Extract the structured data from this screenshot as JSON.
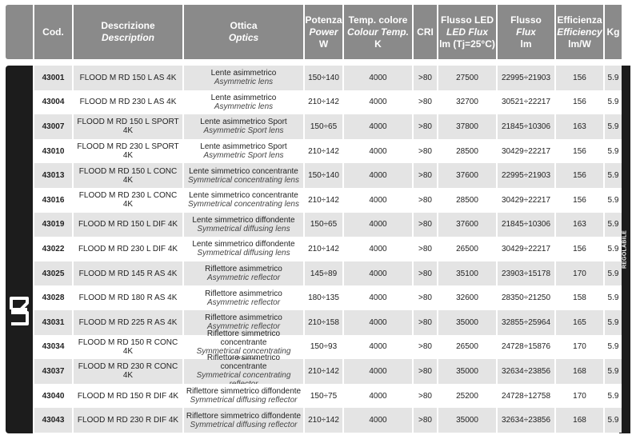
{
  "header": {
    "code": "Cod.",
    "description": {
      "it": "Descrizione",
      "en": "Description"
    },
    "optics": {
      "it": "Ottica",
      "en": "Optics"
    },
    "power": {
      "it": "Potenza",
      "en": "Power",
      "unit": "W"
    },
    "colour_temp": {
      "it": "Temp. colore",
      "en": "Colour Temp.",
      "unit": "K"
    },
    "cri": "CRI",
    "led_flux": {
      "it": "Flusso LED",
      "en": "LED Flux",
      "unit": "lm (Tj=25°C)"
    },
    "flux": {
      "it": "Flusso",
      "en": "Flux",
      "unit": "lm"
    },
    "efficiency": {
      "it": "Efficienza",
      "en": "Efficiency",
      "unit": "lm/W"
    },
    "kg": "Kg"
  },
  "side_label": "RD",
  "right_label": "REGOLABILE",
  "rows": [
    {
      "code": "43001",
      "desc": "FLOOD M RD 150 L AS 4K",
      "optic_it": "Lente asimmetrico",
      "optic_en": "Asymmetric lens",
      "power": "150÷140",
      "temp": "4000",
      "cri": ">80",
      "led_flux": "27500",
      "flux": "22995÷21903",
      "eff": "156",
      "kg": "5.9"
    },
    {
      "code": "43004",
      "desc": "FLOOD M RD 230 L AS 4K",
      "optic_it": "Lente asimmetrico",
      "optic_en": "Asymmetric lens",
      "power": "210÷142",
      "temp": "4000",
      "cri": ">80",
      "led_flux": "32700",
      "flux": "30521÷22217",
      "eff": "156",
      "kg": "5.9"
    },
    {
      "code": "43007",
      "desc": "FLOOD M RD 150 L SPORT 4K",
      "optic_it": "Lente asimmetrico Sport",
      "optic_en": "Asymmetric Sport lens",
      "power": "150÷65",
      "temp": "4000",
      "cri": ">80",
      "led_flux": "37800",
      "flux": "21845÷10306",
      "eff": "163",
      "kg": "5.9"
    },
    {
      "code": "43010",
      "desc": "FLOOD M RD 230 L SPORT 4K",
      "optic_it": "Lente asimmetrico Sport",
      "optic_en": "Asymmetric Sport lens",
      "power": "210÷142",
      "temp": "4000",
      "cri": ">80",
      "led_flux": "28500",
      "flux": "30429÷22217",
      "eff": "156",
      "kg": "5.9"
    },
    {
      "code": "43013",
      "desc": "FLOOD M RD 150 L CONC 4K",
      "optic_it": "Lente simmetrico concentrante",
      "optic_en": "Symmetrical concentrating lens",
      "power": "150÷140",
      "temp": "4000",
      "cri": ">80",
      "led_flux": "37600",
      "flux": "22995÷21903",
      "eff": "156",
      "kg": "5.9"
    },
    {
      "code": "43016",
      "desc": "FLOOD M RD 230 L CONC 4K",
      "optic_it": "Lente simmetrico concentrante",
      "optic_en": "Symmetrical concentrating lens",
      "power": "210÷142",
      "temp": "4000",
      "cri": ">80",
      "led_flux": "28500",
      "flux": "30429÷22217",
      "eff": "156",
      "kg": "5.9"
    },
    {
      "code": "43019",
      "desc": "FLOOD M RD 150 L DIF 4K",
      "optic_it": "Lente simmetrico diffondente",
      "optic_en": "Symmetrical diffusing lens",
      "power": "150÷65",
      "temp": "4000",
      "cri": ">80",
      "led_flux": "37600",
      "flux": "21845÷10306",
      "eff": "163",
      "kg": "5.9"
    },
    {
      "code": "43022",
      "desc": "FLOOD M RD 230 L DIF 4K",
      "optic_it": "Lente simmetrico diffondente",
      "optic_en": "Symmetrical diffusing lens",
      "power": "210÷142",
      "temp": "4000",
      "cri": ">80",
      "led_flux": "26500",
      "flux": "30429÷22217",
      "eff": "156",
      "kg": "5.9"
    },
    {
      "code": "43025",
      "desc": "FLOOD M RD 145 R AS 4K",
      "optic_it": "Riflettore asimmetrico",
      "optic_en": "Asymmetric reflector",
      "power": "145÷89",
      "temp": "4000",
      "cri": ">80",
      "led_flux": "35100",
      "flux": "23903÷15178",
      "eff": "170",
      "kg": "5.9"
    },
    {
      "code": "43028",
      "desc": "FLOOD M RD 180 R AS 4K",
      "optic_it": "Riflettore asimmetrico",
      "optic_en": "Asymmetric reflector",
      "power": "180÷135",
      "temp": "4000",
      "cri": ">80",
      "led_flux": "32600",
      "flux": "28350÷21250",
      "eff": "158",
      "kg": "5.9"
    },
    {
      "code": "43031",
      "desc": "FLOOD M RD 225 R AS 4K",
      "optic_it": "Riflettore asimmetrico",
      "optic_en": "Asymmetric reflector",
      "power": "210÷158",
      "temp": "4000",
      "cri": ">80",
      "led_flux": "35000",
      "flux": "32855÷25964",
      "eff": "165",
      "kg": "5.9"
    },
    {
      "code": "43034",
      "desc": "FLOOD M RD 150 R CONC 4K",
      "optic_it": "Riflettore simmetrico concentrante",
      "optic_en": "Symmetrical concentrating reflector",
      "power": "150÷93",
      "temp": "4000",
      "cri": ">80",
      "led_flux": "26500",
      "flux": "24728÷15876",
      "eff": "170",
      "kg": "5.9"
    },
    {
      "code": "43037",
      "desc": "FLOOD M RD 230 R CONC 4K",
      "optic_it": "Riflettore simmetrico concentrante",
      "optic_en": "Symmetrical concentrating reflector",
      "power": "210÷142",
      "temp": "4000",
      "cri": ">80",
      "led_flux": "35000",
      "flux": "32634÷23856",
      "eff": "168",
      "kg": "5.9"
    },
    {
      "code": "43040",
      "desc": "FLOOD M RD 150 R DIF 4K",
      "optic_it": "Riflettore simmetrico diffondente",
      "optic_en": "Symmetrical diffusing reflector",
      "power": "150÷75",
      "temp": "4000",
      "cri": ">80",
      "led_flux": "25200",
      "flux": "24728÷12758",
      "eff": "170",
      "kg": "5.9"
    },
    {
      "code": "43043",
      "desc": "FLOOD M RD 230 R DIF 4K",
      "optic_it": "Riflettore simmetrico diffondente",
      "optic_en": "Symmetrical diffusing reflector",
      "power": "210÷142",
      "temp": "4000",
      "cri": ">80",
      "led_flux": "35000",
      "flux": "32634÷23856",
      "eff": "168",
      "kg": "5.9"
    }
  ]
}
